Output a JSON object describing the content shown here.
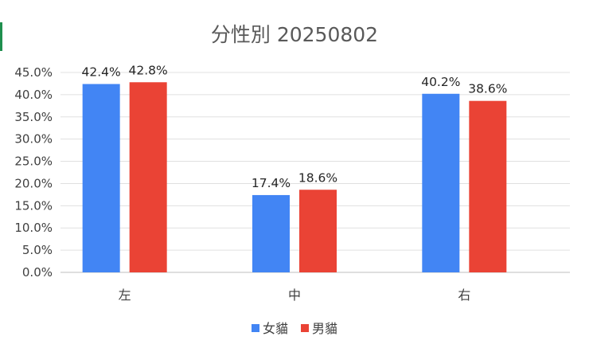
{
  "chart_data": {
    "type": "bar",
    "title": "分性別 20250802",
    "categories": [
      "左",
      "中",
      "右"
    ],
    "series": [
      {
        "name": "女貓",
        "color": "#4285f4",
        "values": [
          42.4,
          17.4,
          40.2
        ]
      },
      {
        "name": "男貓",
        "color": "#ea4335",
        "values": [
          42.8,
          18.6,
          38.6
        ]
      }
    ],
    "ylim": [
      0,
      45
    ],
    "yticks": [
      "0.0%",
      "5.0%",
      "10.0%",
      "15.0%",
      "20.0%",
      "25.0%",
      "30.0%",
      "35.0%",
      "40.0%",
      "45.0%"
    ],
    "data_labels": [
      [
        "42.4%",
        "17.4%",
        "40.2%"
      ],
      [
        "42.8%",
        "18.6%",
        "38.6%"
      ]
    ],
    "grid": true,
    "legend": "bottom",
    "xlabel": "",
    "ylabel": ""
  }
}
